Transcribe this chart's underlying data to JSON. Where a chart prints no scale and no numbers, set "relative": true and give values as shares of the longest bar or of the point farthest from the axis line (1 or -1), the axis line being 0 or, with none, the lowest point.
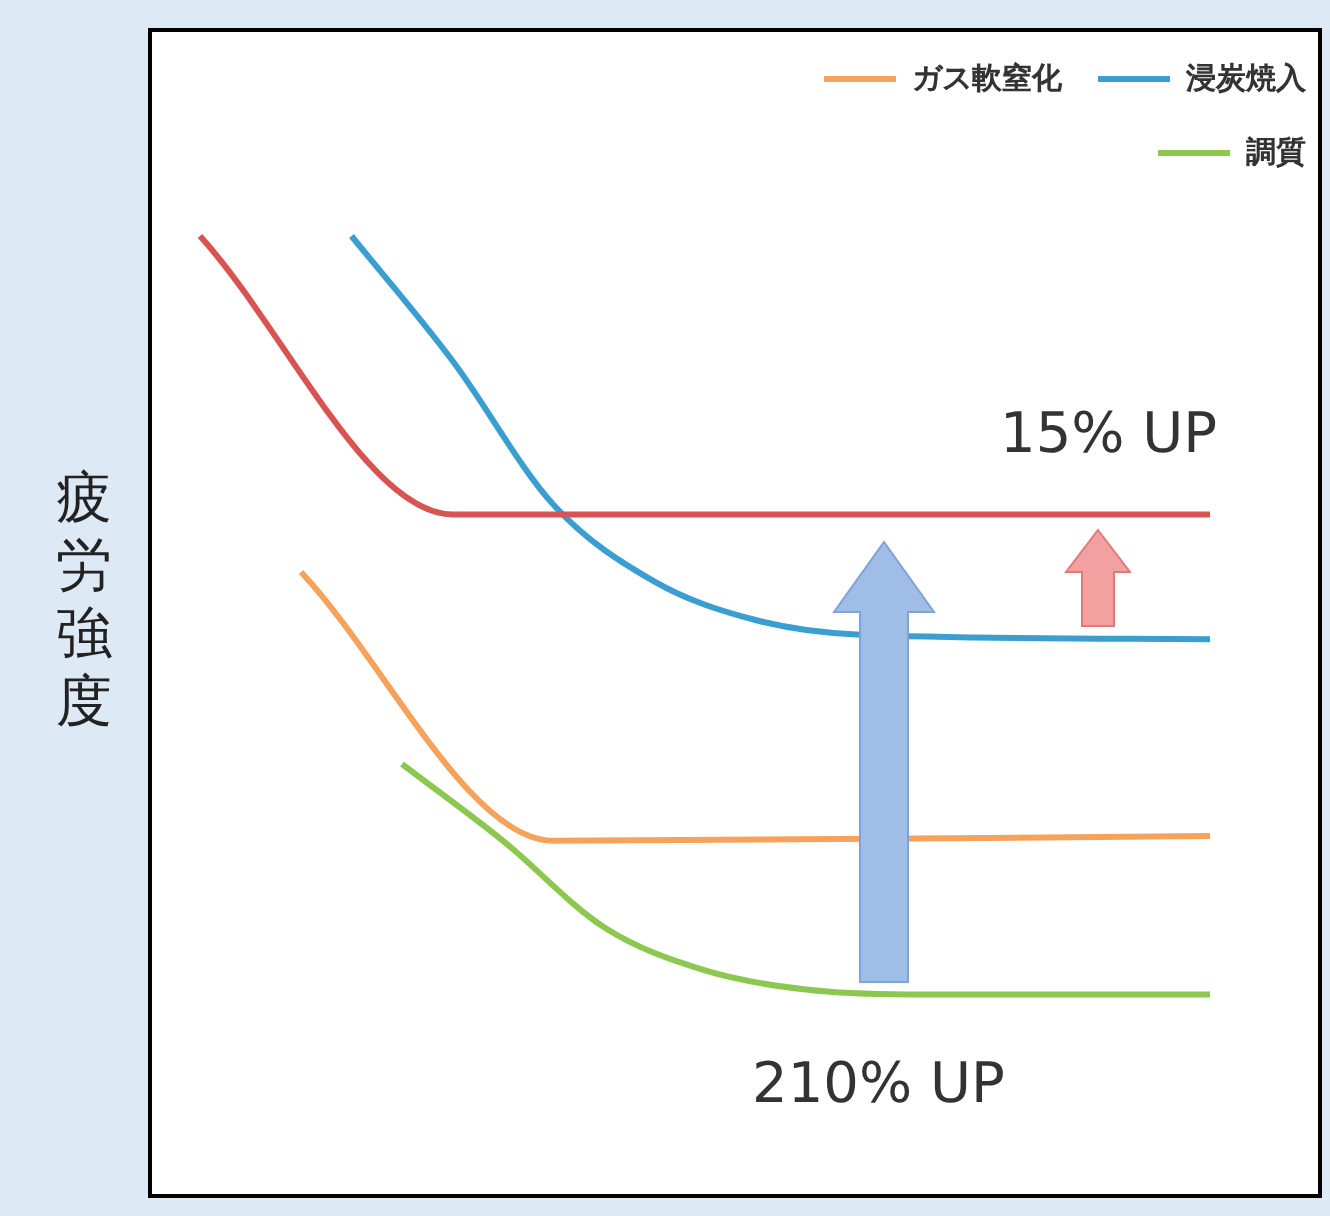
{
  "chart_data": {
    "type": "line",
    "relative": true,
    "ylabel": "疲労強度",
    "legend": "top right",
    "marker": "none",
    "line_style": "solid",
    "categories": [
      null,
      null,
      null,
      null,
      null,
      null,
      null,
      null,
      null,
      null,
      null,
      null,
      null,
      null,
      null,
      null,
      null,
      null,
      null,
      null,
      null
    ],
    "series": [
      {
        "color": "#d95352",
        "values": [
          1,
          null,
          null,
          null,
          null,
          0.71,
          null,
          null,
          null,
          null,
          null,
          null,
          null,
          null,
          null,
          null,
          null,
          null,
          null,
          null,
          0.71
        ]
      },
      {
        "name": "ガス軟窒化",
        "color": "#f5a25c",
        "values": [
          null,
          null,
          0.65,
          null,
          null,
          null,
          null,
          0.37,
          null,
          null,
          null,
          null,
          null,
          null,
          null,
          null,
          null,
          null,
          null,
          null,
          0.375
        ]
      },
      {
        "name": "浸炭焼入",
        "color": "#3a9fd0",
        "values": [
          null,
          null,
          null,
          1,
          null,
          0.87,
          null,
          0.72,
          null,
          0.64,
          null,
          0.6,
          null,
          0.585,
          null,
          null,
          null,
          null,
          null,
          null,
          0.58
        ]
      },
      {
        "name": "調質",
        "color": "#8cc850",
        "values": [
          null,
          null,
          null,
          null,
          0.45,
          null,
          0.37,
          null,
          0.28,
          null,
          0.235,
          null,
          0.215,
          null,
          0.21,
          null,
          null,
          null,
          null,
          null,
          0.21
        ]
      }
    ],
    "annotations": [
      "15% UP",
      "210% UP"
    ]
  }
}
